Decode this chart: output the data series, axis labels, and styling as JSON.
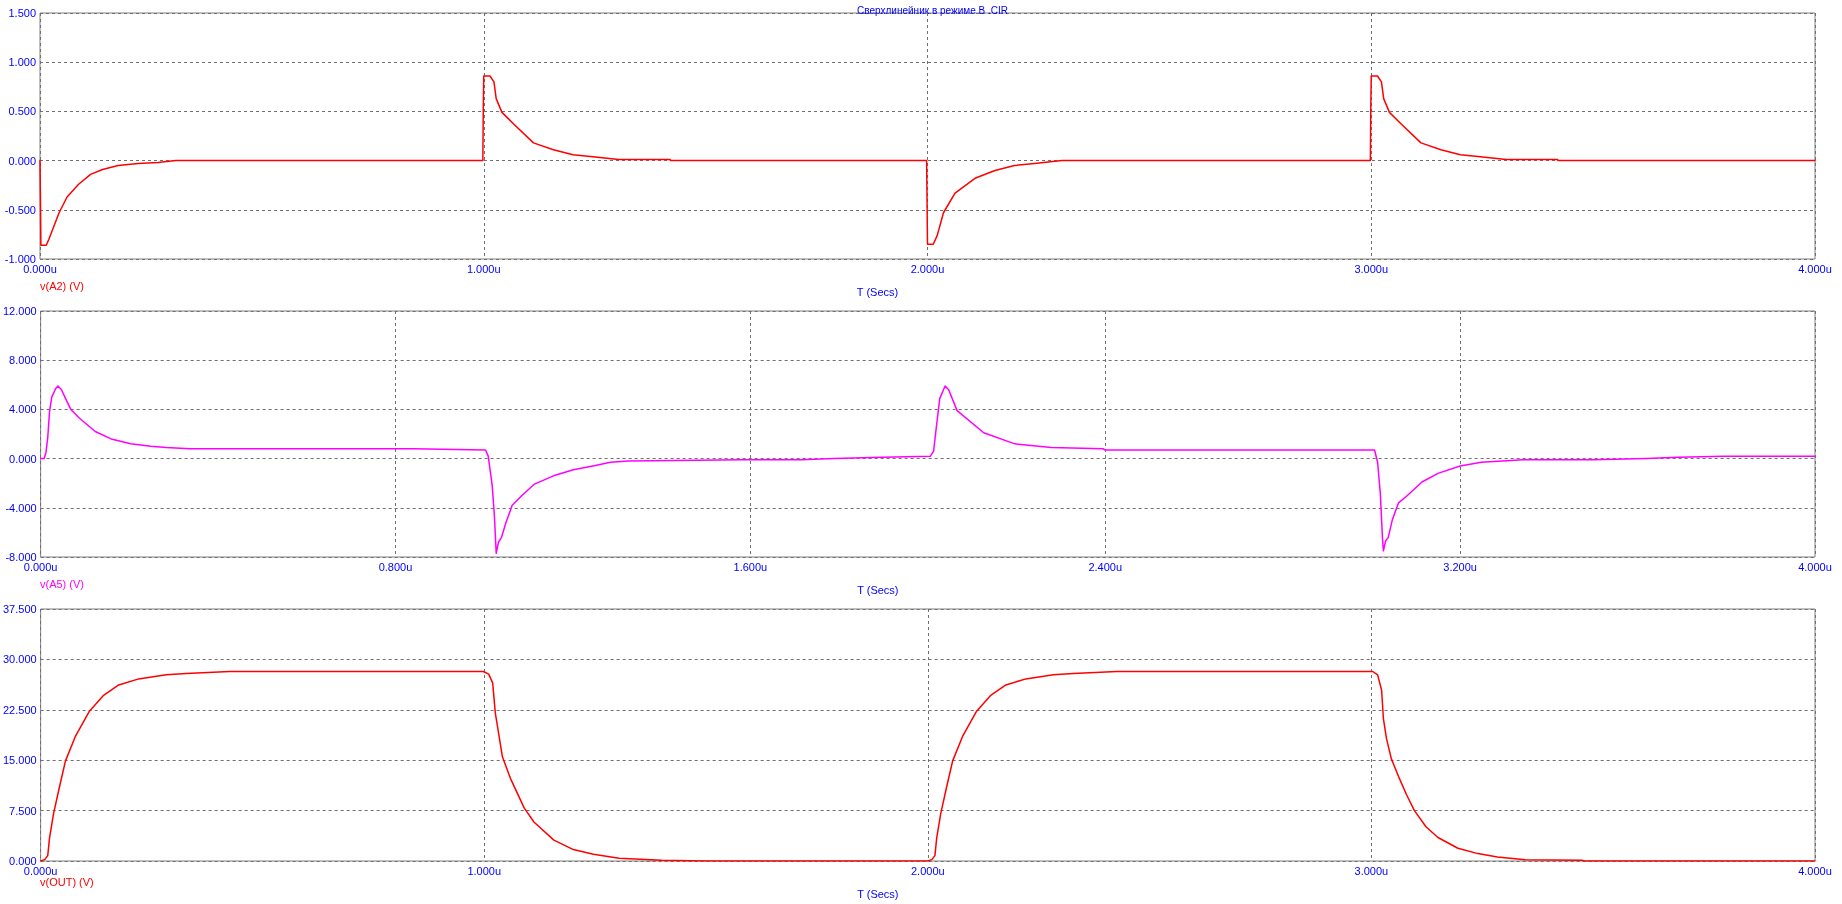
{
  "chart_data": [
    {
      "type": "line",
      "title": "Сверхлинейник в режиме B .CIR",
      "xlabel": "T (Secs)",
      "grid": true,
      "legend": "bottom left",
      "marker": "none",
      "line_style": "solid",
      "xlim": [
        0,
        4
      ],
      "xticks": [
        {
          "value": 0,
          "label": "0.000u"
        },
        {
          "value": 1,
          "label": "1.000u"
        },
        {
          "value": 2,
          "label": "2.000u"
        },
        {
          "value": 3,
          "label": "3.000u"
        },
        {
          "value": 4,
          "label": "4.000u"
        }
      ],
      "ylim": [
        -1,
        1.5
      ],
      "yticks": [
        {
          "value": -1,
          "label": "-1.000"
        },
        {
          "value": -0.5,
          "label": "-0.500"
        },
        {
          "value": 0,
          "label": "0.000"
        },
        {
          "value": 0.5,
          "label": "0.500"
        },
        {
          "value": 1,
          "label": "1.000"
        },
        {
          "value": 1.5,
          "label": "1.500"
        }
      ],
      "x": [
        0,
        0.001,
        0.002,
        0.014,
        0.02,
        0.043,
        0.061,
        0.087,
        0.114,
        0.141,
        0.176,
        0.221,
        0.266,
        0.306,
        0.998,
        0.999,
        1.0,
        1.014,
        1.023,
        1.028,
        1.041,
        1.068,
        1.112,
        1.157,
        1.201,
        1.246,
        1.304,
        1.42,
        1.421,
        1.998,
        2.0,
        2.013,
        2.022,
        2.036,
        2.062,
        2.107,
        2.152,
        2.196,
        2.241,
        2.303,
        2.998,
        2.999,
        3.0,
        3.014,
        3.023,
        3.028,
        3.041,
        3.068,
        3.112,
        3.157,
        3.201,
        3.246,
        3.304,
        3.42,
        3.421,
        4.0
      ],
      "series": [
        {
          "name": "v(A2) (V)",
          "color": "#ff0000",
          "values": [
            0,
            -0.39,
            -0.86,
            -0.86,
            -0.8,
            -0.53,
            -0.37,
            -0.24,
            -0.14,
            -0.09,
            -0.05,
            -0.03,
            -0.02,
            0,
            0,
            0.55,
            0.86,
            0.86,
            0.8,
            0.63,
            0.49,
            0.37,
            0.18,
            0.11,
            0.06,
            0.04,
            0.01,
            0.01,
            0,
            0,
            -0.85,
            -0.85,
            -0.76,
            -0.53,
            -0.33,
            -0.18,
            -0.1,
            -0.05,
            -0.03,
            0,
            0,
            0.55,
            0.86,
            0.86,
            0.8,
            0.63,
            0.49,
            0.37,
            0.18,
            0.11,
            0.06,
            0.04,
            0.01,
            0.01,
            0,
            0
          ]
        }
      ]
    },
    {
      "type": "line",
      "xlabel": "T (Secs)",
      "grid": true,
      "legend": "bottom left",
      "marker": "none",
      "line_style": "solid",
      "xlim": [
        0,
        4
      ],
      "xticks": [
        {
          "value": 0,
          "label": "0.000u"
        },
        {
          "value": 0.8,
          "label": "0.800u"
        },
        {
          "value": 1.6,
          "label": "1.600u"
        },
        {
          "value": 2.4,
          "label": "2.400u"
        },
        {
          "value": 3.2,
          "label": "3.200u"
        },
        {
          "value": 4,
          "label": "4.000u"
        }
      ],
      "ylim": [
        -8,
        12
      ],
      "yticks": [
        {
          "value": -8,
          "label": "-8.000"
        },
        {
          "value": -4,
          "label": "-4.000"
        },
        {
          "value": 0,
          "label": "0.000"
        },
        {
          "value": 4,
          "label": "4.000"
        },
        {
          "value": 8,
          "label": "8.000"
        },
        {
          "value": 12,
          "label": "12.000"
        }
      ],
      "x": [
        0,
        0.008,
        0.012,
        0.016,
        0.02,
        0.025,
        0.034,
        0.039,
        0.047,
        0.056,
        0.068,
        0.087,
        0.123,
        0.159,
        0.203,
        0.248,
        0.283,
        0.337,
        0.836,
        0.84,
        1.003,
        1.009,
        1.018,
        1.023,
        1.027,
        1.032,
        1.039,
        1.049,
        1.063,
        1.085,
        1.112,
        1.156,
        1.201,
        1.245,
        1.285,
        1.324,
        1.581,
        1.714,
        1.788,
        1.897,
        2.006,
        2.013,
        2.019,
        2.027,
        2.039,
        2.047,
        2.066,
        2.126,
        2.196,
        2.278,
        2.395,
        2.4,
        2.976,
        3.007,
        3.014,
        3.02,
        3.025,
        3.027,
        3.032,
        3.038,
        3.047,
        3.061,
        3.078,
        3.114,
        3.15,
        3.2,
        3.248,
        3.342,
        3.499,
        3.619,
        3.691,
        3.794,
        4.0
      ],
      "series": [
        {
          "name": "v(A5) (V)",
          "color": "#ff00ff",
          "values": [
            0,
            0,
            0.5,
            1.7,
            3.8,
            5.0,
            5.7,
            5.9,
            5.6,
            4.9,
            4.0,
            3.3,
            2.2,
            1.6,
            1.2,
            1.0,
            0.9,
            0.8,
            0.8,
            0.8,
            0.7,
            0.2,
            -2.2,
            -4.7,
            -7.7,
            -6.8,
            -6.4,
            -5.2,
            -3.8,
            -3.0,
            -2.1,
            -1.4,
            -0.9,
            -0.6,
            -0.3,
            -0.2,
            -0.1,
            -0.1,
            0,
            0.1,
            0.2,
            0.6,
            2.5,
            4.9,
            5.9,
            5.6,
            3.9,
            2.1,
            1.2,
            0.9,
            0.8,
            0.7,
            0.7,
            0.7,
            -0.3,
            -2.8,
            -6.5,
            -7.5,
            -6.7,
            -6.4,
            -5.0,
            -3.6,
            -3.1,
            -1.9,
            -1.2,
            -0.6,
            -0.3,
            -0.1,
            -0.1,
            0,
            0.1,
            0.2,
            0.2
          ]
        }
      ]
    },
    {
      "type": "line",
      "xlabel": "T (Secs)",
      "grid": true,
      "legend": "bottom left",
      "marker": "none",
      "line_style": "solid",
      "xlim": [
        0,
        4
      ],
      "xticks": [
        {
          "value": 0,
          "label": "0.000u"
        },
        {
          "value": 1,
          "label": "1.000u"
        },
        {
          "value": 2,
          "label": "2.000u"
        },
        {
          "value": 3,
          "label": "3.000u"
        },
        {
          "value": 4,
          "label": "4.000u"
        }
      ],
      "ylim": [
        0,
        37.5
      ],
      "yticks": [
        {
          "value": 0,
          "label": "0.000"
        },
        {
          "value": 7.5,
          "label": "7.500"
        },
        {
          "value": 15,
          "label": "15.000"
        },
        {
          "value": 22.5,
          "label": "22.500"
        },
        {
          "value": 30,
          "label": "30.000"
        },
        {
          "value": 37.5,
          "label": "37.500"
        }
      ],
      "x": [
        0,
        0.009,
        0.016,
        0.02,
        0.029,
        0.043,
        0.056,
        0.078,
        0.11,
        0.141,
        0.176,
        0.221,
        0.283,
        0.328,
        0.426,
        0.998,
        1.01,
        1.019,
        1.025,
        1.03,
        1.041,
        1.059,
        1.09,
        1.112,
        1.157,
        1.201,
        1.246,
        1.304,
        1.4,
        1.5,
        2.0,
        2.009,
        2.016,
        2.02,
        2.029,
        2.043,
        2.056,
        2.078,
        2.11,
        2.141,
        2.176,
        2.221,
        2.283,
        2.328,
        2.426,
        3.003,
        3.014,
        3.023,
        3.027,
        3.034,
        3.045,
        3.061,
        3.079,
        3.097,
        3.123,
        3.15,
        3.195,
        3.24,
        3.284,
        3.347,
        3.476,
        3.48,
        4.0
      ],
      "series": [
        {
          "name": "v(OUT) (V)",
          "color": "#ff0000",
          "values": [
            0,
            0.2,
            0.8,
            3.4,
            7.0,
            11.2,
            14.9,
            18.5,
            22.3,
            24.6,
            26.2,
            27.1,
            27.7,
            27.9,
            28.2,
            28.2,
            27.8,
            26.5,
            22.0,
            20.0,
            15.5,
            12.3,
            7.9,
            5.8,
            3.1,
            1.7,
            1.0,
            0.4,
            0.1,
            0,
            0,
            0.2,
            0.8,
            3.4,
            7.0,
            11.2,
            14.9,
            18.5,
            22.3,
            24.6,
            26.2,
            27.1,
            27.7,
            27.9,
            28.2,
            28.2,
            27.7,
            25.4,
            21.2,
            18.2,
            15.2,
            12.6,
            9.9,
            7.5,
            5.1,
            3.5,
            1.9,
            1.1,
            0.6,
            0.2,
            0.1,
            0,
            0
          ]
        }
      ]
    }
  ]
}
